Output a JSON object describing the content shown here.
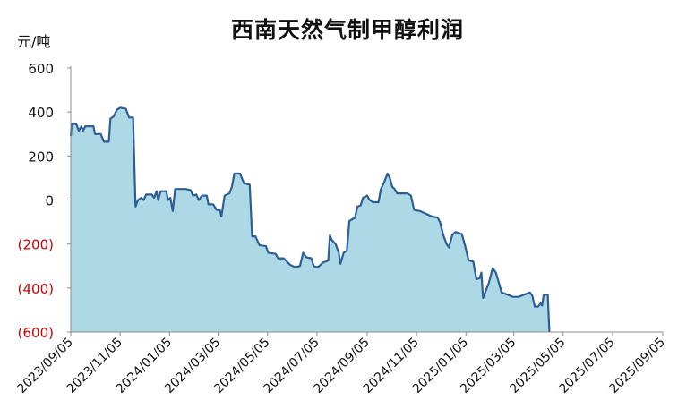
{
  "chart_data": {
    "type": "area",
    "title": "西南天然气制甲醇利润",
    "unit": "元/吨",
    "xlabel": "",
    "ylabel": "",
    "ylim": [
      -600,
      600
    ],
    "y_ticks": [
      600,
      400,
      200,
      0,
      -200,
      -400,
      -600
    ],
    "y_tick_labels": [
      "600",
      "400",
      "200",
      "0",
      "(200)",
      "(400)",
      "(600)"
    ],
    "negative_tick_color": "#cc0000",
    "x_ticks": [
      "2023/09/05",
      "2023/11/05",
      "2024/01/05",
      "2024/03/05",
      "2024/05/05",
      "2024/07/05",
      "2024/09/05",
      "2024/11/05",
      "2025/01/05",
      "2025/03/05",
      "2025/05/05",
      "2025/07/05",
      "2025/09/05"
    ],
    "grid": false,
    "legend": "none",
    "series": [
      {
        "line_color": "#2e5e93",
        "fill_color": "#add8e6",
        "points": [
          [
            "2023-09-05",
            290
          ],
          [
            "2023-09-06",
            345
          ],
          [
            "2023-09-12",
            345
          ],
          [
            "2023-09-15",
            315
          ],
          [
            "2023-09-18",
            335
          ],
          [
            "2023-09-20",
            315
          ],
          [
            "2023-09-23",
            335
          ],
          [
            "2023-10-03",
            335
          ],
          [
            "2023-10-05",
            300
          ],
          [
            "2023-10-12",
            300
          ],
          [
            "2023-10-16",
            265
          ],
          [
            "2023-10-22",
            265
          ],
          [
            "2023-10-24",
            370
          ],
          [
            "2023-10-28",
            380
          ],
          [
            "2023-11-01",
            410
          ],
          [
            "2023-11-05",
            420
          ],
          [
            "2023-11-12",
            415
          ],
          [
            "2023-11-16",
            375
          ],
          [
            "2023-11-21",
            375
          ],
          [
            "2023-11-24",
            -30
          ],
          [
            "2023-11-27",
            0
          ],
          [
            "2023-12-01",
            10
          ],
          [
            "2023-12-04",
            0
          ],
          [
            "2023-12-07",
            25
          ],
          [
            "2023-12-14",
            25
          ],
          [
            "2023-12-17",
            10
          ],
          [
            "2023-12-20",
            40
          ],
          [
            "2023-12-22",
            0
          ],
          [
            "2023-12-25",
            40
          ],
          [
            "2024-01-01",
            40
          ],
          [
            "2024-01-03",
            0
          ],
          [
            "2024-01-06",
            10
          ],
          [
            "2024-01-09",
            -50
          ],
          [
            "2024-01-12",
            50
          ],
          [
            "2024-01-25",
            50
          ],
          [
            "2024-01-31",
            45
          ],
          [
            "2024-02-03",
            20
          ],
          [
            "2024-02-07",
            25
          ],
          [
            "2024-02-10",
            0
          ],
          [
            "2024-02-14",
            20
          ],
          [
            "2024-02-20",
            20
          ],
          [
            "2024-02-22",
            -20
          ],
          [
            "2024-02-28",
            -20
          ],
          [
            "2024-03-03",
            -45
          ],
          [
            "2024-03-07",
            -45
          ],
          [
            "2024-03-09",
            -75
          ],
          [
            "2024-03-13",
            20
          ],
          [
            "2024-03-19",
            30
          ],
          [
            "2024-03-22",
            60
          ],
          [
            "2024-03-25",
            120
          ],
          [
            "2024-04-01",
            120
          ],
          [
            "2024-04-06",
            75
          ],
          [
            "2024-04-13",
            70
          ],
          [
            "2024-04-16",
            -165
          ],
          [
            "2024-04-20",
            -165
          ],
          [
            "2024-04-25",
            -205
          ],
          [
            "2024-05-03",
            -210
          ],
          [
            "2024-05-06",
            -240
          ],
          [
            "2024-05-15",
            -245
          ],
          [
            "2024-05-18",
            -265
          ],
          [
            "2024-05-25",
            -265
          ],
          [
            "2024-06-02",
            -295
          ],
          [
            "2024-06-08",
            -305
          ],
          [
            "2024-06-14",
            -300
          ],
          [
            "2024-06-18",
            -240
          ],
          [
            "2024-06-22",
            -260
          ],
          [
            "2024-06-28",
            -265
          ],
          [
            "2024-07-01",
            -300
          ],
          [
            "2024-07-05",
            -305
          ],
          [
            "2024-07-08",
            -300
          ],
          [
            "2024-07-12",
            -285
          ],
          [
            "2024-07-19",
            -275
          ],
          [
            "2024-07-21",
            -160
          ],
          [
            "2024-07-23",
            -180
          ],
          [
            "2024-07-28",
            -200
          ],
          [
            "2024-08-01",
            -240
          ],
          [
            "2024-08-03",
            -290
          ],
          [
            "2024-08-07",
            -240
          ],
          [
            "2024-08-11",
            -230
          ],
          [
            "2024-08-14",
            -95
          ],
          [
            "2024-08-21",
            -80
          ],
          [
            "2024-08-24",
            -30
          ],
          [
            "2024-08-28",
            -25
          ],
          [
            "2024-08-31",
            10
          ],
          [
            "2024-09-05",
            20
          ],
          [
            "2024-09-08",
            0
          ],
          [
            "2024-09-12",
            -10
          ],
          [
            "2024-09-19",
            -10
          ],
          [
            "2024-09-22",
            50
          ],
          [
            "2024-09-26",
            80
          ],
          [
            "2024-09-30",
            120
          ],
          [
            "2024-10-03",
            100
          ],
          [
            "2024-10-06",
            60
          ],
          [
            "2024-10-09",
            50
          ],
          [
            "2024-10-12",
            30
          ],
          [
            "2024-10-25",
            30
          ],
          [
            "2024-10-29",
            20
          ],
          [
            "2024-11-02",
            -45
          ],
          [
            "2024-11-09",
            -50
          ],
          [
            "2024-11-15",
            -60
          ],
          [
            "2024-11-24",
            -75
          ],
          [
            "2024-12-01",
            -80
          ],
          [
            "2024-12-04",
            -100
          ],
          [
            "2024-12-08",
            -160
          ],
          [
            "2024-12-12",
            -200
          ],
          [
            "2024-12-15",
            -215
          ],
          [
            "2024-12-19",
            -160
          ],
          [
            "2024-12-23",
            -145
          ],
          [
            "2024-12-27",
            -150
          ],
          [
            "2024-12-31",
            -155
          ],
          [
            "2025-01-04",
            -210
          ],
          [
            "2025-01-08",
            -270
          ],
          [
            "2025-01-09",
            -275
          ],
          [
            "2025-01-14",
            -280
          ],
          [
            "2025-01-18",
            -360
          ],
          [
            "2025-01-22",
            -355
          ],
          [
            "2025-01-24",
            -330
          ],
          [
            "2025-01-26",
            -445
          ],
          [
            "2025-02-02",
            -380
          ],
          [
            "2025-02-07",
            -310
          ],
          [
            "2025-02-11",
            -330
          ],
          [
            "2025-02-18",
            -420
          ],
          [
            "2025-02-25",
            -430
          ],
          [
            "2025-03-04",
            -440
          ],
          [
            "2025-03-11",
            -440
          ],
          [
            "2025-03-18",
            -430
          ],
          [
            "2025-03-25",
            -420
          ],
          [
            "2025-03-28",
            -435
          ],
          [
            "2025-03-31",
            -485
          ],
          [
            "2025-04-04",
            -485
          ],
          [
            "2025-04-07",
            -470
          ],
          [
            "2025-04-09",
            -480
          ],
          [
            "2025-04-11",
            -430
          ],
          [
            "2025-04-16",
            -430
          ],
          [
            "2025-04-18",
            -600
          ]
        ]
      }
    ]
  }
}
